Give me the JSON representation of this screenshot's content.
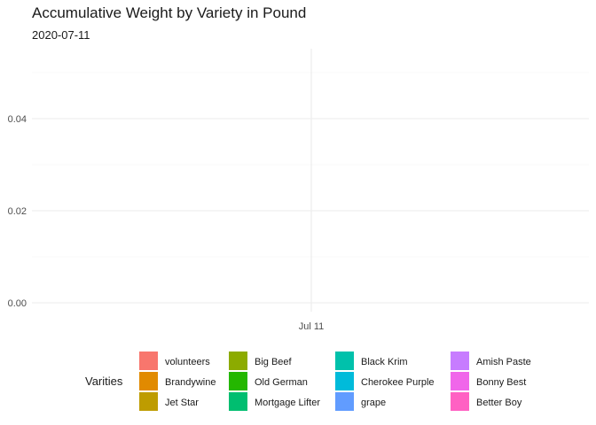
{
  "chart_data": {
    "type": "area",
    "title": "Accumulative Weight by Variety in Pound",
    "subtitle": "2020-07-11",
    "xlabel": "",
    "ylabel": "",
    "x_ticks": [
      "Jul 11"
    ],
    "y_ticks": [
      "0.00",
      "0.02",
      "0.04"
    ],
    "ylim": [
      0,
      0.055
    ],
    "grid": true,
    "legend_position": "bottom",
    "legend_title": "Varities",
    "series": [
      {
        "name": "volunteers",
        "color": "#F8766D",
        "values": [
          0
        ]
      },
      {
        "name": "Brandywine",
        "color": "#E18A00",
        "values": [
          0
        ]
      },
      {
        "name": "Jet Star",
        "color": "#BE9C00",
        "values": [
          0
        ]
      },
      {
        "name": "Big Beef",
        "color": "#8CAB00",
        "values": [
          0
        ]
      },
      {
        "name": "Old German",
        "color": "#24B700",
        "values": [
          0
        ]
      },
      {
        "name": "Mortgage Lifter",
        "color": "#00BE70",
        "values": [
          0
        ]
      },
      {
        "name": "Black Krim",
        "color": "#00C1AB",
        "values": [
          0
        ]
      },
      {
        "name": "Cherokee Purple",
        "color": "#00BBDA",
        "values": [
          0
        ]
      },
      {
        "name": "grape",
        "color": "#619CFF",
        "values": [
          0
        ]
      },
      {
        "name": "Amish Paste",
        "color": "#C77CFF",
        "values": [
          0
        ]
      },
      {
        "name": "Bonny Best",
        "color": "#F066EA",
        "values": [
          0
        ]
      },
      {
        "name": "Better Boy",
        "color": "#FF61C3",
        "values": [
          0
        ]
      }
    ],
    "x": [
      "2020-07-11"
    ]
  }
}
